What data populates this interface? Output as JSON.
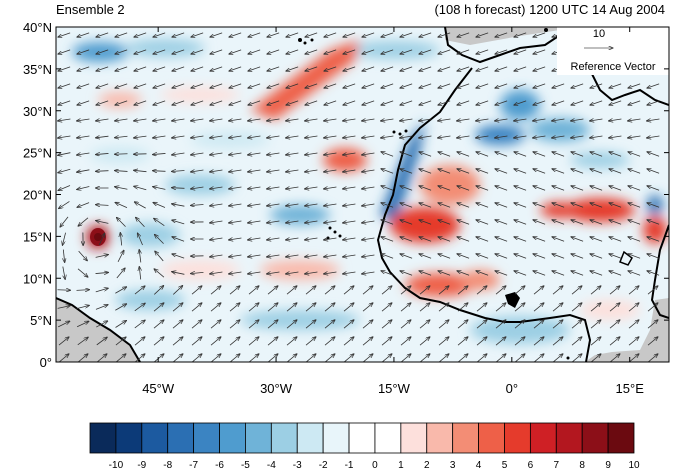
{
  "header": {
    "left_title": "Ensemble 2",
    "right_title": "(108 h forecast) 1200 UTC 14 Aug 2004"
  },
  "axes": {
    "y_ticks": [
      "40°N",
      "35°N",
      "30°N",
      "25°N",
      "20°N",
      "15°N",
      "10°N",
      "5°N",
      "0°"
    ],
    "x_ticks": [
      "45°W",
      "30°W",
      "15°W",
      "0°",
      "15°E"
    ]
  },
  "reference_vector": {
    "magnitude": "10",
    "label": "Reference Vector"
  },
  "colorbar": {
    "labels": [
      "-10",
      "-9",
      "-8",
      "-7",
      "-6",
      "-5",
      "-4",
      "-3",
      "-2",
      "-1",
      "0",
      "1",
      "2",
      "3",
      "4",
      "5",
      "6",
      "7",
      "8",
      "9",
      "10"
    ],
    "colors": [
      "#0a2a5a",
      "#0c3a78",
      "#1c5aa0",
      "#2b6fb3",
      "#3b84c2",
      "#4f9ccf",
      "#6fb3d8",
      "#9ccfe4",
      "#cde9f3",
      "#e8f5fa",
      "#ffffff",
      "#ffffff",
      "#fde0dc",
      "#f9b9ab",
      "#f38d75",
      "#ee6048",
      "#e53b2c",
      "#cf2025",
      "#b3171f",
      "#8c0f18",
      "#6b0a10"
    ]
  },
  "map": {
    "lon_range": [
      -58,
      20
    ],
    "lat_range": [
      0,
      40
    ],
    "colors": {
      "land_gray": "#c8c8c8",
      "coast": "#000000",
      "arrow": "#333333"
    }
  }
}
